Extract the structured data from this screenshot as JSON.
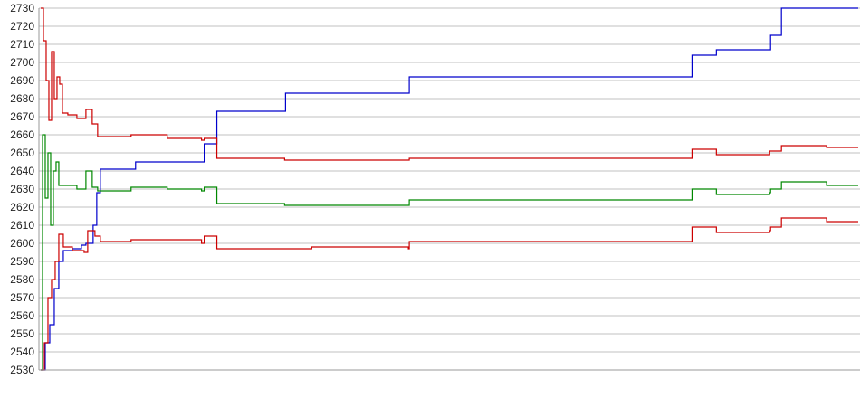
{
  "chart_data": {
    "type": "line",
    "title": "",
    "xlabel": "",
    "ylabel": "",
    "ylim": [
      2530,
      2730
    ],
    "xlim": [
      0,
      905
    ],
    "yticks": [
      2530,
      2540,
      2550,
      2560,
      2570,
      2580,
      2590,
      2600,
      2610,
      2620,
      2630,
      2640,
      2650,
      2660,
      2670,
      2680,
      2690,
      2700,
      2710,
      2720,
      2730
    ],
    "grid": true,
    "legend": "none",
    "series": [
      {
        "color": "#0000cc",
        "step": true,
        "points": [
          [
            0,
            2530
          ],
          [
            5,
            2545
          ],
          [
            10,
            2555
          ],
          [
            15,
            2575
          ],
          [
            20,
            2590
          ],
          [
            25,
            2596
          ],
          [
            35,
            2597
          ],
          [
            45,
            2599
          ],
          [
            50,
            2600
          ],
          [
            58,
            2610
          ],
          [
            62,
            2628
          ],
          [
            66,
            2641
          ],
          [
            100,
            2641
          ],
          [
            105,
            2645
          ],
          [
            178,
            2645
          ],
          [
            181,
            2655
          ],
          [
            194,
            2655
          ],
          [
            195,
            2673
          ],
          [
            270,
            2673
          ],
          [
            271,
            2683
          ],
          [
            407,
            2683
          ],
          [
            408,
            2692
          ],
          [
            720,
            2692
          ],
          [
            721,
            2704
          ],
          [
            747,
            2704
          ],
          [
            748,
            2707
          ],
          [
            807,
            2707
          ],
          [
            808,
            2715
          ],
          [
            819,
            2715
          ],
          [
            820,
            2730
          ],
          [
            905,
            2730
          ]
        ]
      },
      {
        "color": "#cc0000",
        "step": true,
        "points": [
          [
            0,
            2730
          ],
          [
            3,
            2712
          ],
          [
            6,
            2690
          ],
          [
            9,
            2668
          ],
          [
            12,
            2706
          ],
          [
            15,
            2680
          ],
          [
            18,
            2692
          ],
          [
            21,
            2688
          ],
          [
            24,
            2672
          ],
          [
            30,
            2671
          ],
          [
            40,
            2669
          ],
          [
            50,
            2674
          ],
          [
            57,
            2666
          ],
          [
            63,
            2659
          ],
          [
            100,
            2660
          ],
          [
            140,
            2658
          ],
          [
            178,
            2657
          ],
          [
            181,
            2658
          ],
          [
            194,
            2658
          ],
          [
            195,
            2647
          ],
          [
            265,
            2647
          ],
          [
            270,
            2646
          ],
          [
            407,
            2646
          ],
          [
            408,
            2647
          ],
          [
            720,
            2647
          ],
          [
            721,
            2652
          ],
          [
            747,
            2652
          ],
          [
            748,
            2649
          ],
          [
            807,
            2651
          ],
          [
            819,
            2651
          ],
          [
            820,
            2654
          ],
          [
            865,
            2654
          ],
          [
            870,
            2653
          ],
          [
            905,
            2653
          ]
        ]
      },
      {
        "color": "#008800",
        "step": true,
        "points": [
          [
            0,
            2530
          ],
          [
            2,
            2660
          ],
          [
            5,
            2625
          ],
          [
            8,
            2650
          ],
          [
            11,
            2610
          ],
          [
            14,
            2640
          ],
          [
            17,
            2645
          ],
          [
            20,
            2632
          ],
          [
            30,
            2632
          ],
          [
            40,
            2630
          ],
          [
            50,
            2640
          ],
          [
            57,
            2631
          ],
          [
            63,
            2629
          ],
          [
            100,
            2631
          ],
          [
            140,
            2630
          ],
          [
            178,
            2629
          ],
          [
            181,
            2631
          ],
          [
            194,
            2631
          ],
          [
            195,
            2622
          ],
          [
            265,
            2622
          ],
          [
            270,
            2621
          ],
          [
            407,
            2621
          ],
          [
            408,
            2624
          ],
          [
            720,
            2624
          ],
          [
            721,
            2630
          ],
          [
            747,
            2630
          ],
          [
            748,
            2627
          ],
          [
            807,
            2628
          ],
          [
            808,
            2630
          ],
          [
            819,
            2630
          ],
          [
            820,
            2634
          ],
          [
            865,
            2634
          ],
          [
            870,
            2632
          ],
          [
            905,
            2632
          ]
        ]
      },
      {
        "color": "#cc0000",
        "step": true,
        "points": [
          [
            0,
            2530
          ],
          [
            4,
            2545
          ],
          [
            8,
            2570
          ],
          [
            12,
            2580
          ],
          [
            16,
            2590
          ],
          [
            20,
            2605
          ],
          [
            25,
            2598
          ],
          [
            35,
            2596
          ],
          [
            48,
            2595
          ],
          [
            52,
            2607
          ],
          [
            60,
            2604
          ],
          [
            66,
            2601
          ],
          [
            100,
            2602
          ],
          [
            140,
            2602
          ],
          [
            178,
            2600
          ],
          [
            181,
            2604
          ],
          [
            194,
            2604
          ],
          [
            195,
            2597
          ],
          [
            265,
            2597
          ],
          [
            300,
            2598
          ],
          [
            407,
            2597
          ],
          [
            408,
            2601
          ],
          [
            720,
            2601
          ],
          [
            721,
            2609
          ],
          [
            747,
            2609
          ],
          [
            748,
            2606
          ],
          [
            807,
            2607
          ],
          [
            808,
            2609
          ],
          [
            819,
            2609
          ],
          [
            820,
            2614
          ],
          [
            865,
            2614
          ],
          [
            870,
            2612
          ],
          [
            905,
            2612
          ]
        ]
      }
    ]
  }
}
